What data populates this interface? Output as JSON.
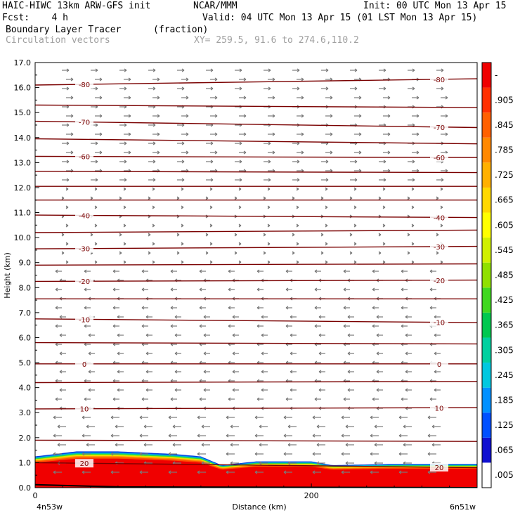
{
  "header": {
    "model_title": "HAIC-HIWC 13km ARW-GFS init",
    "center": "NCAR/MMM",
    "init": "Init: 00 UTC Mon 13 Apr 15",
    "fcst": "Fcst:    4 h",
    "valid": "Valid: 04 UTC Mon 13 Apr 15 (01 LST Mon 13 Apr 15)",
    "field": "Boundary Layer Tracer",
    "units": "(fraction)",
    "overlay": "Circulation vectors",
    "xy": "XY= 259.5, 91.6 to 274.6,110.2"
  },
  "chart_data": {
    "type": "heatmap",
    "title": "Boundary Layer Tracer",
    "units": "(fraction)",
    "xlabel": "Distance (km)",
    "ylabel": "Height (km)",
    "xlim": [
      0,
      320
    ],
    "ylim": [
      0.0,
      17.0
    ],
    "x_ticks": [
      "0",
      "200"
    ],
    "x_end_labels": [
      "4n53w",
      "6n51w"
    ],
    "y_ticks": [
      "0.0",
      "1.0",
      "2.0",
      "3.0",
      "4.0",
      "5.0",
      "6.0",
      "7.0",
      "8.0",
      "9.0",
      "10.0",
      "11.0",
      "12.0",
      "13.0",
      "14.0",
      "15.0",
      "16.0",
      "17.0"
    ],
    "colorbar": {
      "labels": [
        ".005",
        ".065",
        ".125",
        ".185",
        ".245",
        ".305",
        ".365",
        ".425",
        ".485",
        ".545",
        ".605",
        ".665",
        ".725",
        ".785",
        ".845",
        ".905",
        "-"
      ],
      "colors": [
        "#ffffff",
        "#1010d0",
        "#0050ff",
        "#0090ff",
        "#00c8e0",
        "#00d0a0",
        "#00c850",
        "#40d820",
        "#90e000",
        "#d0f000",
        "#ffff00",
        "#ffd800",
        "#ffb000",
        "#ff8800",
        "#ff6000",
        "#ff3000",
        "#f00000"
      ]
    },
    "tracer_top_km": [
      {
        "x": 0,
        "top": 1.25
      },
      {
        "x": 30,
        "top": 1.45
      },
      {
        "x": 60,
        "top": 1.45
      },
      {
        "x": 100,
        "top": 1.35
      },
      {
        "x": 120,
        "top": 1.25
      },
      {
        "x": 135,
        "top": 0.9
      },
      {
        "x": 160,
        "top": 1.05
      },
      {
        "x": 200,
        "top": 1.05
      },
      {
        "x": 215,
        "top": 0.9
      },
      {
        "x": 260,
        "top": 0.95
      },
      {
        "x": 320,
        "top": 0.95
      }
    ],
    "isotherms": [
      {
        "label": "-80",
        "h0": 16.1,
        "h1": 16.35
      },
      {
        "label": "",
        "h0": 15.3,
        "h1": 15.2
      },
      {
        "label": "-70",
        "h0": 14.65,
        "h1": 14.4
      },
      {
        "label": "",
        "h0": 13.95,
        "h1": 13.75
      },
      {
        "label": "-60",
        "h0": 13.25,
        "h1": 13.2
      },
      {
        "label": "",
        "h0": 12.65,
        "h1": 12.6
      },
      {
        "label": "",
        "h0": 12.05,
        "h1": 12.05
      },
      {
        "label": "",
        "h0": 11.5,
        "h1": 11.5
      },
      {
        "label": "-40",
        "h0": 10.9,
        "h1": 10.8
      },
      {
        "label": "",
        "h0": 10.2,
        "h1": 10.3
      },
      {
        "label": "-30",
        "h0": 9.55,
        "h1": 9.65
      },
      {
        "label": "",
        "h0": 8.9,
        "h1": 8.95
      },
      {
        "label": "-20",
        "h0": 8.25,
        "h1": 8.3
      },
      {
        "label": "",
        "h0": 7.55,
        "h1": 7.55
      },
      {
        "label": "-10",
        "h0": 6.75,
        "h1": 6.6
      },
      {
        "label": "",
        "h0": 5.8,
        "h1": 5.75
      },
      {
        "label": "0",
        "h0": 4.95,
        "h1": 4.95
      },
      {
        "label": "",
        "h0": 4.2,
        "h1": 4.25
      },
      {
        "label": "10",
        "h0": 3.15,
        "h1": 3.2
      },
      {
        "label": "",
        "h0": 1.9,
        "h1": 1.85
      },
      {
        "label": "20",
        "h0": 1.0,
        "h1": 0.8
      }
    ]
  }
}
